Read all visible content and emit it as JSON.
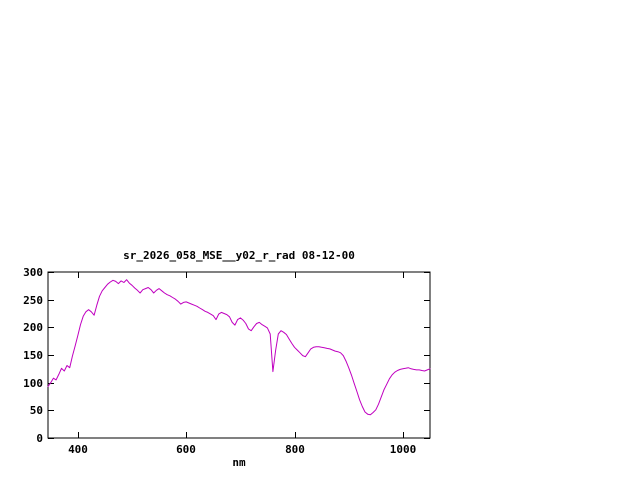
{
  "chart_data": {
    "type": "line",
    "title": "sr_2026_058_MSE__y02_r_rad 08-12-00",
    "xlabel": "nm",
    "ylabel": "",
    "xlim": [
      345,
      1050
    ],
    "ylim": [
      0,
      300
    ],
    "x_ticks": [
      400,
      600,
      800,
      1000
    ],
    "y_ticks": [
      0,
      50,
      100,
      150,
      200,
      250,
      300
    ],
    "grid": false,
    "legend": "none",
    "line_color": "#c000c0",
    "axis_color": "#000000",
    "series": [
      {
        "name": "sr_2026_058_MSE__y02_r_rad",
        "points": [
          [
            345,
            93
          ],
          [
            350,
            100
          ],
          [
            355,
            108
          ],
          [
            360,
            105
          ],
          [
            365,
            115
          ],
          [
            370,
            126
          ],
          [
            375,
            121
          ],
          [
            380,
            131
          ],
          [
            385,
            127
          ],
          [
            390,
            148
          ],
          [
            395,
            166
          ],
          [
            400,
            185
          ],
          [
            405,
            205
          ],
          [
            410,
            220
          ],
          [
            415,
            228
          ],
          [
            420,
            232
          ],
          [
            425,
            228
          ],
          [
            430,
            222
          ],
          [
            435,
            240
          ],
          [
            440,
            256
          ],
          [
            445,
            266
          ],
          [
            450,
            272
          ],
          [
            455,
            278
          ],
          [
            460,
            282
          ],
          [
            465,
            285
          ],
          [
            470,
            283
          ],
          [
            475,
            279
          ],
          [
            480,
            284
          ],
          [
            485,
            281
          ],
          [
            490,
            286
          ],
          [
            495,
            280
          ],
          [
            500,
            276
          ],
          [
            505,
            271
          ],
          [
            510,
            267
          ],
          [
            515,
            262
          ],
          [
            520,
            268
          ],
          [
            525,
            270
          ],
          [
            530,
            272
          ],
          [
            535,
            268
          ],
          [
            540,
            262
          ],
          [
            545,
            267
          ],
          [
            550,
            270
          ],
          [
            555,
            266
          ],
          [
            560,
            262
          ],
          [
            565,
            259
          ],
          [
            570,
            257
          ],
          [
            575,
            254
          ],
          [
            580,
            251
          ],
          [
            585,
            247
          ],
          [
            590,
            242
          ],
          [
            595,
            245
          ],
          [
            600,
            246
          ],
          [
            605,
            244
          ],
          [
            610,
            242
          ],
          [
            615,
            240
          ],
          [
            620,
            238
          ],
          [
            625,
            235
          ],
          [
            630,
            232
          ],
          [
            635,
            229
          ],
          [
            640,
            227
          ],
          [
            645,
            224
          ],
          [
            650,
            221
          ],
          [
            655,
            214
          ],
          [
            660,
            224
          ],
          [
            665,
            227
          ],
          [
            670,
            225
          ],
          [
            675,
            223
          ],
          [
            680,
            219
          ],
          [
            685,
            209
          ],
          [
            690,
            204
          ],
          [
            695,
            214
          ],
          [
            700,
            217
          ],
          [
            705,
            213
          ],
          [
            710,
            207
          ],
          [
            715,
            197
          ],
          [
            720,
            194
          ],
          [
            725,
            201
          ],
          [
            730,
            207
          ],
          [
            735,
            209
          ],
          [
            740,
            205
          ],
          [
            745,
            202
          ],
          [
            750,
            199
          ],
          [
            755,
            188
          ],
          [
            760,
            120
          ],
          [
            765,
            158
          ],
          [
            770,
            188
          ],
          [
            775,
            194
          ],
          [
            780,
            191
          ],
          [
            785,
            187
          ],
          [
            790,
            179
          ],
          [
            795,
            171
          ],
          [
            800,
            164
          ],
          [
            805,
            159
          ],
          [
            810,
            154
          ],
          [
            815,
            149
          ],
          [
            820,
            147
          ],
          [
            825,
            154
          ],
          [
            830,
            161
          ],
          [
            835,
            164
          ],
          [
            840,
            165
          ],
          [
            845,
            165
          ],
          [
            850,
            164
          ],
          [
            855,
            163
          ],
          [
            860,
            162
          ],
          [
            865,
            161
          ],
          [
            870,
            159
          ],
          [
            875,
            157
          ],
          [
            880,
            156
          ],
          [
            885,
            154
          ],
          [
            890,
            149
          ],
          [
            895,
            139
          ],
          [
            900,
            127
          ],
          [
            905,
            114
          ],
          [
            910,
            99
          ],
          [
            915,
            84
          ],
          [
            920,
            69
          ],
          [
            925,
            57
          ],
          [
            930,
            47
          ],
          [
            935,
            43
          ],
          [
            940,
            42
          ],
          [
            945,
            46
          ],
          [
            950,
            51
          ],
          [
            955,
            61
          ],
          [
            960,
            74
          ],
          [
            965,
            87
          ],
          [
            970,
            97
          ],
          [
            975,
            107
          ],
          [
            980,
            114
          ],
          [
            985,
            119
          ],
          [
            990,
            122
          ],
          [
            995,
            124
          ],
          [
            1000,
            125
          ],
          [
            1005,
            126
          ],
          [
            1010,
            127
          ],
          [
            1015,
            125
          ],
          [
            1020,
            124
          ],
          [
            1025,
            123
          ],
          [
            1030,
            123
          ],
          [
            1035,
            122
          ],
          [
            1040,
            121
          ],
          [
            1045,
            123
          ],
          [
            1050,
            125
          ]
        ]
      }
    ]
  }
}
